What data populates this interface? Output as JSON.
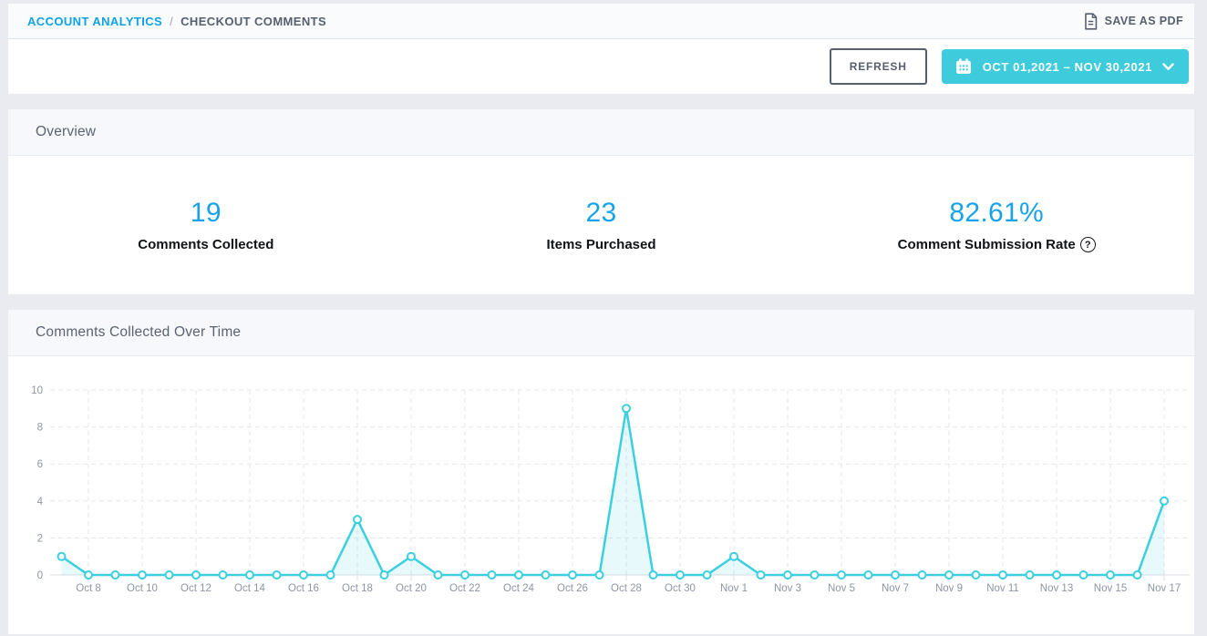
{
  "breadcrumb": {
    "parent": "ACCOUNT ANALYTICS",
    "separator": "/",
    "current": "CHECKOUT COMMENTS"
  },
  "header_actions": {
    "save_pdf_label": "SAVE AS PDF"
  },
  "toolbar": {
    "refresh_label": "REFRESH",
    "date_range_label": "OCT 01,2021 – NOV 30,2021"
  },
  "overview": {
    "title": "Overview",
    "stats": [
      {
        "value": "19",
        "label": "Comments Collected"
      },
      {
        "value": "23",
        "label": "Items Purchased"
      },
      {
        "value": "82.61%",
        "label": "Comment Submission Rate",
        "help_symbol": "?"
      }
    ]
  },
  "chart_section": {
    "title": "Comments Collected Over Time"
  },
  "chart_data": {
    "type": "line",
    "title": "Comments Collected Over Time",
    "x": [
      "Oct 7",
      "Oct 8",
      "Oct 9",
      "Oct 10",
      "Oct 11",
      "Oct 12",
      "Oct 13",
      "Oct 14",
      "Oct 15",
      "Oct 16",
      "Oct 17",
      "Oct 18",
      "Oct 19",
      "Oct 20",
      "Oct 21",
      "Oct 22",
      "Oct 23",
      "Oct 24",
      "Oct 25",
      "Oct 26",
      "Oct 27",
      "Oct 28",
      "Oct 29",
      "Oct 30",
      "Oct 31",
      "Nov 1",
      "Nov 2",
      "Nov 3",
      "Nov 4",
      "Nov 5",
      "Nov 6",
      "Nov 7",
      "Nov 8",
      "Nov 9",
      "Nov 10",
      "Nov 11",
      "Nov 12",
      "Nov 13",
      "Nov 14",
      "Nov 15",
      "Nov 16",
      "Nov 17"
    ],
    "values": [
      1,
      0,
      0,
      0,
      0,
      0,
      0,
      0,
      0,
      0,
      0,
      3,
      0,
      1,
      0,
      0,
      0,
      0,
      0,
      0,
      0,
      9,
      0,
      0,
      0,
      1,
      0,
      0,
      0,
      0,
      0,
      0,
      0,
      0,
      0,
      0,
      0,
      0,
      0,
      0,
      0,
      4
    ],
    "x_tick_labels": [
      "Oct 8",
      "Oct 10",
      "Oct 12",
      "Oct 14",
      "Oct 16",
      "Oct 18",
      "Oct 20",
      "Oct 22",
      "Oct 24",
      "Oct 26",
      "Oct 28",
      "Oct 30",
      "Nov 1",
      "Nov 3",
      "Nov 5",
      "Nov 7",
      "Nov 9",
      "Nov 11",
      "Nov 13",
      "Nov 15",
      "Nov 17"
    ],
    "yticks": [
      0,
      2,
      4,
      6,
      8,
      10
    ],
    "ylim": [
      0,
      10
    ],
    "xlabel": "",
    "ylabel": "",
    "grid": "dashed",
    "legend": "none",
    "marker": "open-circle",
    "area_fill": true
  },
  "colors": {
    "accent_blue": "#18a3e8",
    "accent_cyan": "#3ecbdb",
    "chart_line": "#3bcfe0",
    "chart_area": "rgba(62,207,224,0.12)",
    "grid": "#e4e7ee",
    "axis": "#d9dde5",
    "axis_text": "#8d96a3"
  }
}
